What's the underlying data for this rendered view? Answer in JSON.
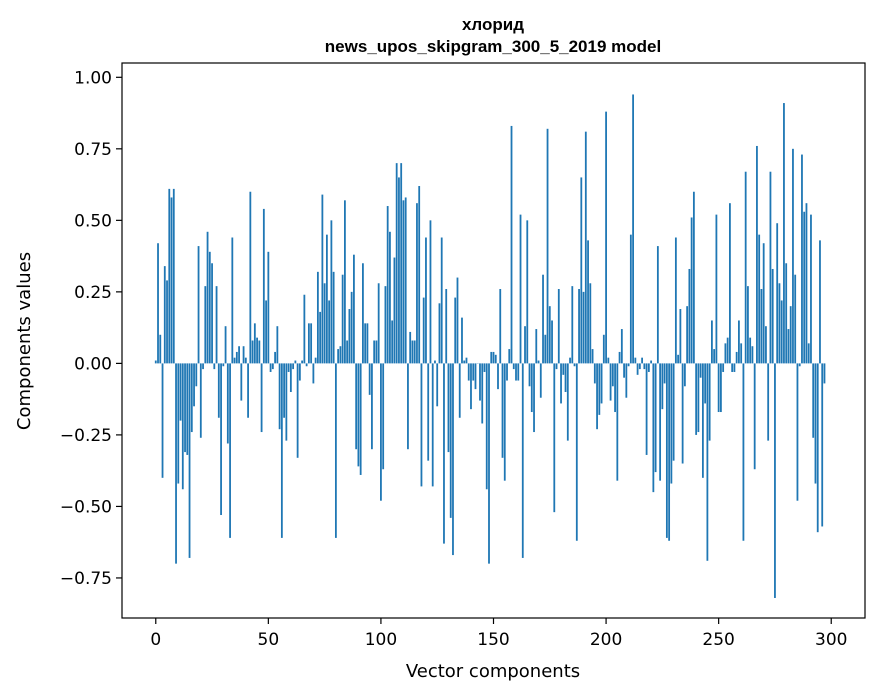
{
  "chart_data": {
    "type": "bar",
    "title": "хлорид",
    "subtitle": "news_upos_skipgram_300_5_2019 model",
    "xlabel": "Vector components",
    "ylabel": "Components values",
    "xlim": [
      -15,
      315
    ],
    "ylim": [
      -0.89,
      1.05
    ],
    "xticks": [
      0,
      50,
      100,
      150,
      200,
      250,
      300
    ],
    "yticks": [
      -0.75,
      -0.5,
      -0.25,
      0.0,
      0.25,
      0.5,
      0.75,
      1.0
    ],
    "ytick_labels": [
      "−0.75",
      "−0.50",
      "−0.25",
      "0.00",
      "0.25",
      "0.50",
      "0.75",
      "1.00"
    ],
    "bar_color": "#1f77b4",
    "values": [
      0.01,
      0.42,
      0.1,
      -0.4,
      0.34,
      0.29,
      0.61,
      0.58,
      0.61,
      -0.7,
      -0.42,
      -0.2,
      -0.44,
      -0.31,
      -0.32,
      -0.68,
      -0.24,
      -0.15,
      -0.08,
      0.41,
      -0.26,
      -0.02,
      0.27,
      0.46,
      0.39,
      0.35,
      -0.02,
      0.27,
      -0.19,
      -0.53,
      -0.01,
      0.13,
      -0.28,
      -0.61,
      0.44,
      0.02,
      0.04,
      0.06,
      -0.13,
      0.06,
      0.02,
      -0.19,
      0.6,
      0.08,
      0.14,
      0.09,
      0.08,
      -0.24,
      0.54,
      0.22,
      0.39,
      -0.03,
      -0.02,
      0.04,
      0.13,
      -0.23,
      -0.61,
      -0.19,
      -0.27,
      -0.03,
      -0.1,
      -0.02,
      0.01,
      -0.33,
      -0.06,
      0.01,
      0.24,
      -0.01,
      0.14,
      0.14,
      -0.07,
      0.02,
      0.32,
      0.18,
      0.59,
      0.28,
      0.45,
      0.22,
      0.5,
      0.32,
      -0.61,
      0.05,
      0.06,
      0.31,
      0.57,
      0.08,
      0.19,
      0.25,
      0.38,
      -0.3,
      -0.36,
      -0.39,
      0.35,
      0.14,
      0.14,
      -0.11,
      -0.3,
      0.08,
      0.08,
      0.28,
      -0.48,
      -0.37,
      0.27,
      0.55,
      0.46,
      0.15,
      0.37,
      0.7,
      0.65,
      0.7,
      0.57,
      0.58,
      -0.3,
      0.11,
      0.08,
      0.08,
      0.56,
      0.62,
      -0.43,
      0.23,
      0.44,
      -0.34,
      0.5,
      -0.43,
      0.01,
      -0.15,
      0.21,
      0.44,
      -0.63,
      0.26,
      -0.31,
      -0.54,
      -0.67,
      0.23,
      0.3,
      -0.19,
      0.16,
      0.01,
      0.02,
      -0.06,
      -0.16,
      -0.06,
      -0.09,
      0.0,
      -0.13,
      -0.21,
      -0.03,
      -0.44,
      -0.7,
      0.04,
      0.04,
      0.03,
      -0.09,
      0.26,
      -0.33,
      -0.41,
      -0.06,
      0.05,
      0.83,
      -0.02,
      -0.06,
      -0.06,
      0.52,
      -0.68,
      0.13,
      0.5,
      -0.08,
      -0.17,
      -0.24,
      0.12,
      0.01,
      -0.12,
      0.31,
      0.1,
      0.82,
      0.2,
      0.15,
      -0.52,
      -0.02,
      0.26,
      -0.14,
      -0.04,
      -0.1,
      -0.27,
      0.02,
      0.27,
      -0.01,
      -0.62,
      0.26,
      0.65,
      0.25,
      0.81,
      0.43,
      0.28,
      0.05,
      -0.07,
      -0.23,
      -0.18,
      -0.14,
      0.1,
      0.88,
      0.02,
      -0.13,
      -0.08,
      -0.17,
      -0.41,
      0.04,
      0.12,
      -0.05,
      -0.12,
      -0.01,
      0.45,
      0.94,
      0.02,
      -0.04,
      -0.02,
      0.02,
      -0.02,
      -0.32,
      -0.03,
      0.01,
      -0.45,
      -0.38,
      0.41,
      -0.41,
      -0.16,
      -0.07,
      -0.61,
      -0.62,
      -0.42,
      -0.34,
      0.44,
      0.03,
      0.19,
      -0.35,
      -0.08,
      0.2,
      0.33,
      0.51,
      0.6,
      -0.25,
      -0.24,
      -0.05,
      -0.4,
      -0.14,
      -0.69,
      -0.27,
      0.15,
      0.05,
      0.52,
      -0.17,
      -0.17,
      -0.03,
      0.07,
      0.09,
      0.56,
      -0.03,
      -0.03,
      0.04,
      0.15,
      0.07,
      -0.62,
      0.67,
      0.27,
      0.09,
      0.06,
      -0.37,
      0.76,
      0.45,
      0.26,
      0.42,
      0.13,
      -0.27,
      0.67,
      0.33,
      -0.82,
      0.49,
      0.28,
      0.22,
      0.91,
      0.35,
      0.12,
      0.2,
      0.75,
      0.31,
      -0.48,
      -0.01,
      0.73,
      0.53,
      0.56,
      0.07,
      0.52,
      -0.26,
      -0.42,
      -0.59,
      0.43,
      -0.57,
      -0.07
    ]
  }
}
